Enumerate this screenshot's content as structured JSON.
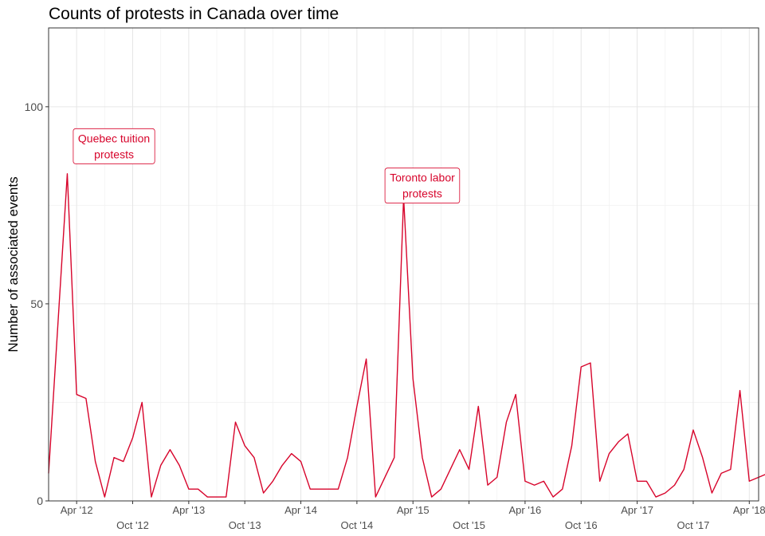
{
  "chart_data": {
    "type": "line",
    "title": "Counts of protests in Canada over time",
    "xlabel": "",
    "ylabel": "Number of associated events",
    "x_start": "2012-01",
    "xlim": [
      "2012-01",
      "2018-05"
    ],
    "ylim": [
      0,
      120
    ],
    "y_ticks": [
      0,
      50,
      100
    ],
    "x_ticks": [
      {
        "date": "2012-04",
        "label": "Apr '12"
      },
      {
        "date": "2012-10",
        "label": "Oct '12"
      },
      {
        "date": "2013-04",
        "label": "Apr '13"
      },
      {
        "date": "2013-10",
        "label": "Oct '13"
      },
      {
        "date": "2014-04",
        "label": "Apr '14"
      },
      {
        "date": "2014-10",
        "label": "Oct '14"
      },
      {
        "date": "2015-04",
        "label": "Apr '15"
      },
      {
        "date": "2015-10",
        "label": "Oct '15"
      },
      {
        "date": "2016-04",
        "label": "Apr '16"
      },
      {
        "date": "2016-10",
        "label": "Oct '16"
      },
      {
        "date": "2017-04",
        "label": "Apr '17"
      },
      {
        "date": "2017-10",
        "label": "Oct '17"
      },
      {
        "date": "2018-04",
        "label": "Apr '18"
      }
    ],
    "grid": true,
    "line_color": "#d7042b",
    "series": [
      {
        "values": [
          7,
          45,
          83,
          27,
          26,
          10,
          1,
          11,
          10,
          16,
          25,
          1,
          9,
          13,
          9,
          3,
          3,
          1,
          1,
          1,
          20,
          14,
          11,
          2,
          5,
          9,
          12,
          10,
          3,
          3,
          3,
          3,
          11,
          24,
          36,
          1,
          6,
          11,
          77,
          31,
          11,
          1,
          3,
          8,
          13,
          8,
          24,
          4,
          6,
          20,
          27,
          5,
          4,
          5,
          1,
          3,
          14,
          34,
          35,
          5,
          12,
          15,
          17,
          5,
          5,
          1,
          2,
          4,
          8,
          18,
          11,
          2,
          7,
          8,
          28,
          5,
          6,
          7
        ]
      }
    ],
    "annotations": [
      {
        "text_lines": [
          "Quebec tuition",
          "protests"
        ],
        "x": "2012-08",
        "y": 90
      },
      {
        "text_lines": [
          "Toronto labor",
          "protests"
        ],
        "x": "2015-05",
        "y": 80
      }
    ]
  }
}
